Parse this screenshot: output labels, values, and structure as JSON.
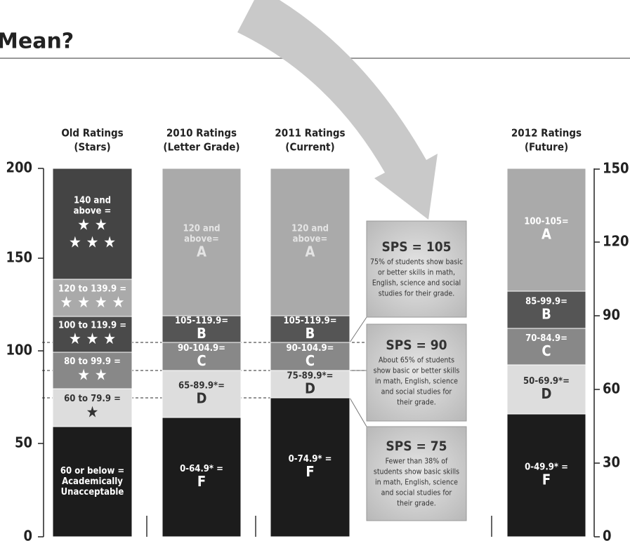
{
  "title": "Mean?",
  "left_axis": {
    "ticks": [
      "0",
      "50",
      "100",
      "150",
      "200"
    ]
  },
  "right_axis": {
    "ticks": [
      "0",
      "30",
      "60",
      "90",
      "120",
      "150"
    ]
  },
  "columns": [
    {
      "heading": [
        "Old Ratings",
        "(Stars)"
      ],
      "segments": [
        {
          "lines": [
            "140 and",
            "above =",
            "★ ★",
            "★ ★ ★"
          ]
        },
        {
          "lines": [
            "120 to 139.9 =",
            "★ ★ ★ ★"
          ]
        },
        {
          "lines": [
            "100 to 119.9 =",
            "★ ★ ★"
          ]
        },
        {
          "lines": [
            "80 to 99.9  =",
            "★ ★"
          ]
        },
        {
          "lines": [
            "60 to 79.9 =",
            "★"
          ]
        },
        {
          "lines": [
            "60 or below =",
            "Academically",
            "Unacceptable"
          ]
        }
      ]
    },
    {
      "heading": [
        "2010 Ratings",
        "(Letter Grade)"
      ],
      "segments": [
        {
          "lines": [
            "120 and",
            "above=",
            "A"
          ]
        },
        {
          "lines": [
            "105-119.9=",
            "B"
          ]
        },
        {
          "lines": [
            "90-104.9=",
            "C"
          ]
        },
        {
          "lines": [
            "65-89.9*=",
            "D"
          ]
        },
        {
          "lines": [
            "0-64.9* =",
            "F"
          ]
        }
      ]
    },
    {
      "heading": [
        "2011 Ratings",
        "(Current)"
      ],
      "segments": [
        {
          "lines": [
            "120 and",
            "above=",
            "A"
          ]
        },
        {
          "lines": [
            "105-119.9=",
            "B"
          ]
        },
        {
          "lines": [
            "90-104.9=",
            "C"
          ]
        },
        {
          "lines": [
            "75-89.9*=",
            "D"
          ]
        },
        {
          "lines": [
            "0-74.9* =",
            "F"
          ]
        }
      ]
    },
    {
      "heading": [
        "2012 Ratings",
        "(Future)"
      ],
      "segments": [
        {
          "lines": [
            "100-105=",
            "A"
          ]
        },
        {
          "lines": [
            "85-99.9=",
            "B"
          ]
        },
        {
          "lines": [
            "70-84.9=",
            "C"
          ]
        },
        {
          "lines": [
            "50-69.9*=",
            "D"
          ]
        },
        {
          "lines": [
            "0-49.9* =",
            "F"
          ]
        }
      ]
    }
  ],
  "boxes": [
    {
      "title": "SPS = 105",
      "text": [
        "75% of students show basic",
        "or better skills in math,",
        "English, science and social",
        "studies for their grade."
      ]
    },
    {
      "title": "SPS = 90",
      "text": [
        "About 65% of students",
        "show basic or better skills",
        "in math, English, science",
        "and social studies for",
        "their grade."
      ]
    },
    {
      "title": "SPS = 75",
      "text": [
        "Fewer than 38% of",
        "students show basic skills",
        "in math, English, science",
        "and social studies for",
        "their grade."
      ]
    }
  ]
}
